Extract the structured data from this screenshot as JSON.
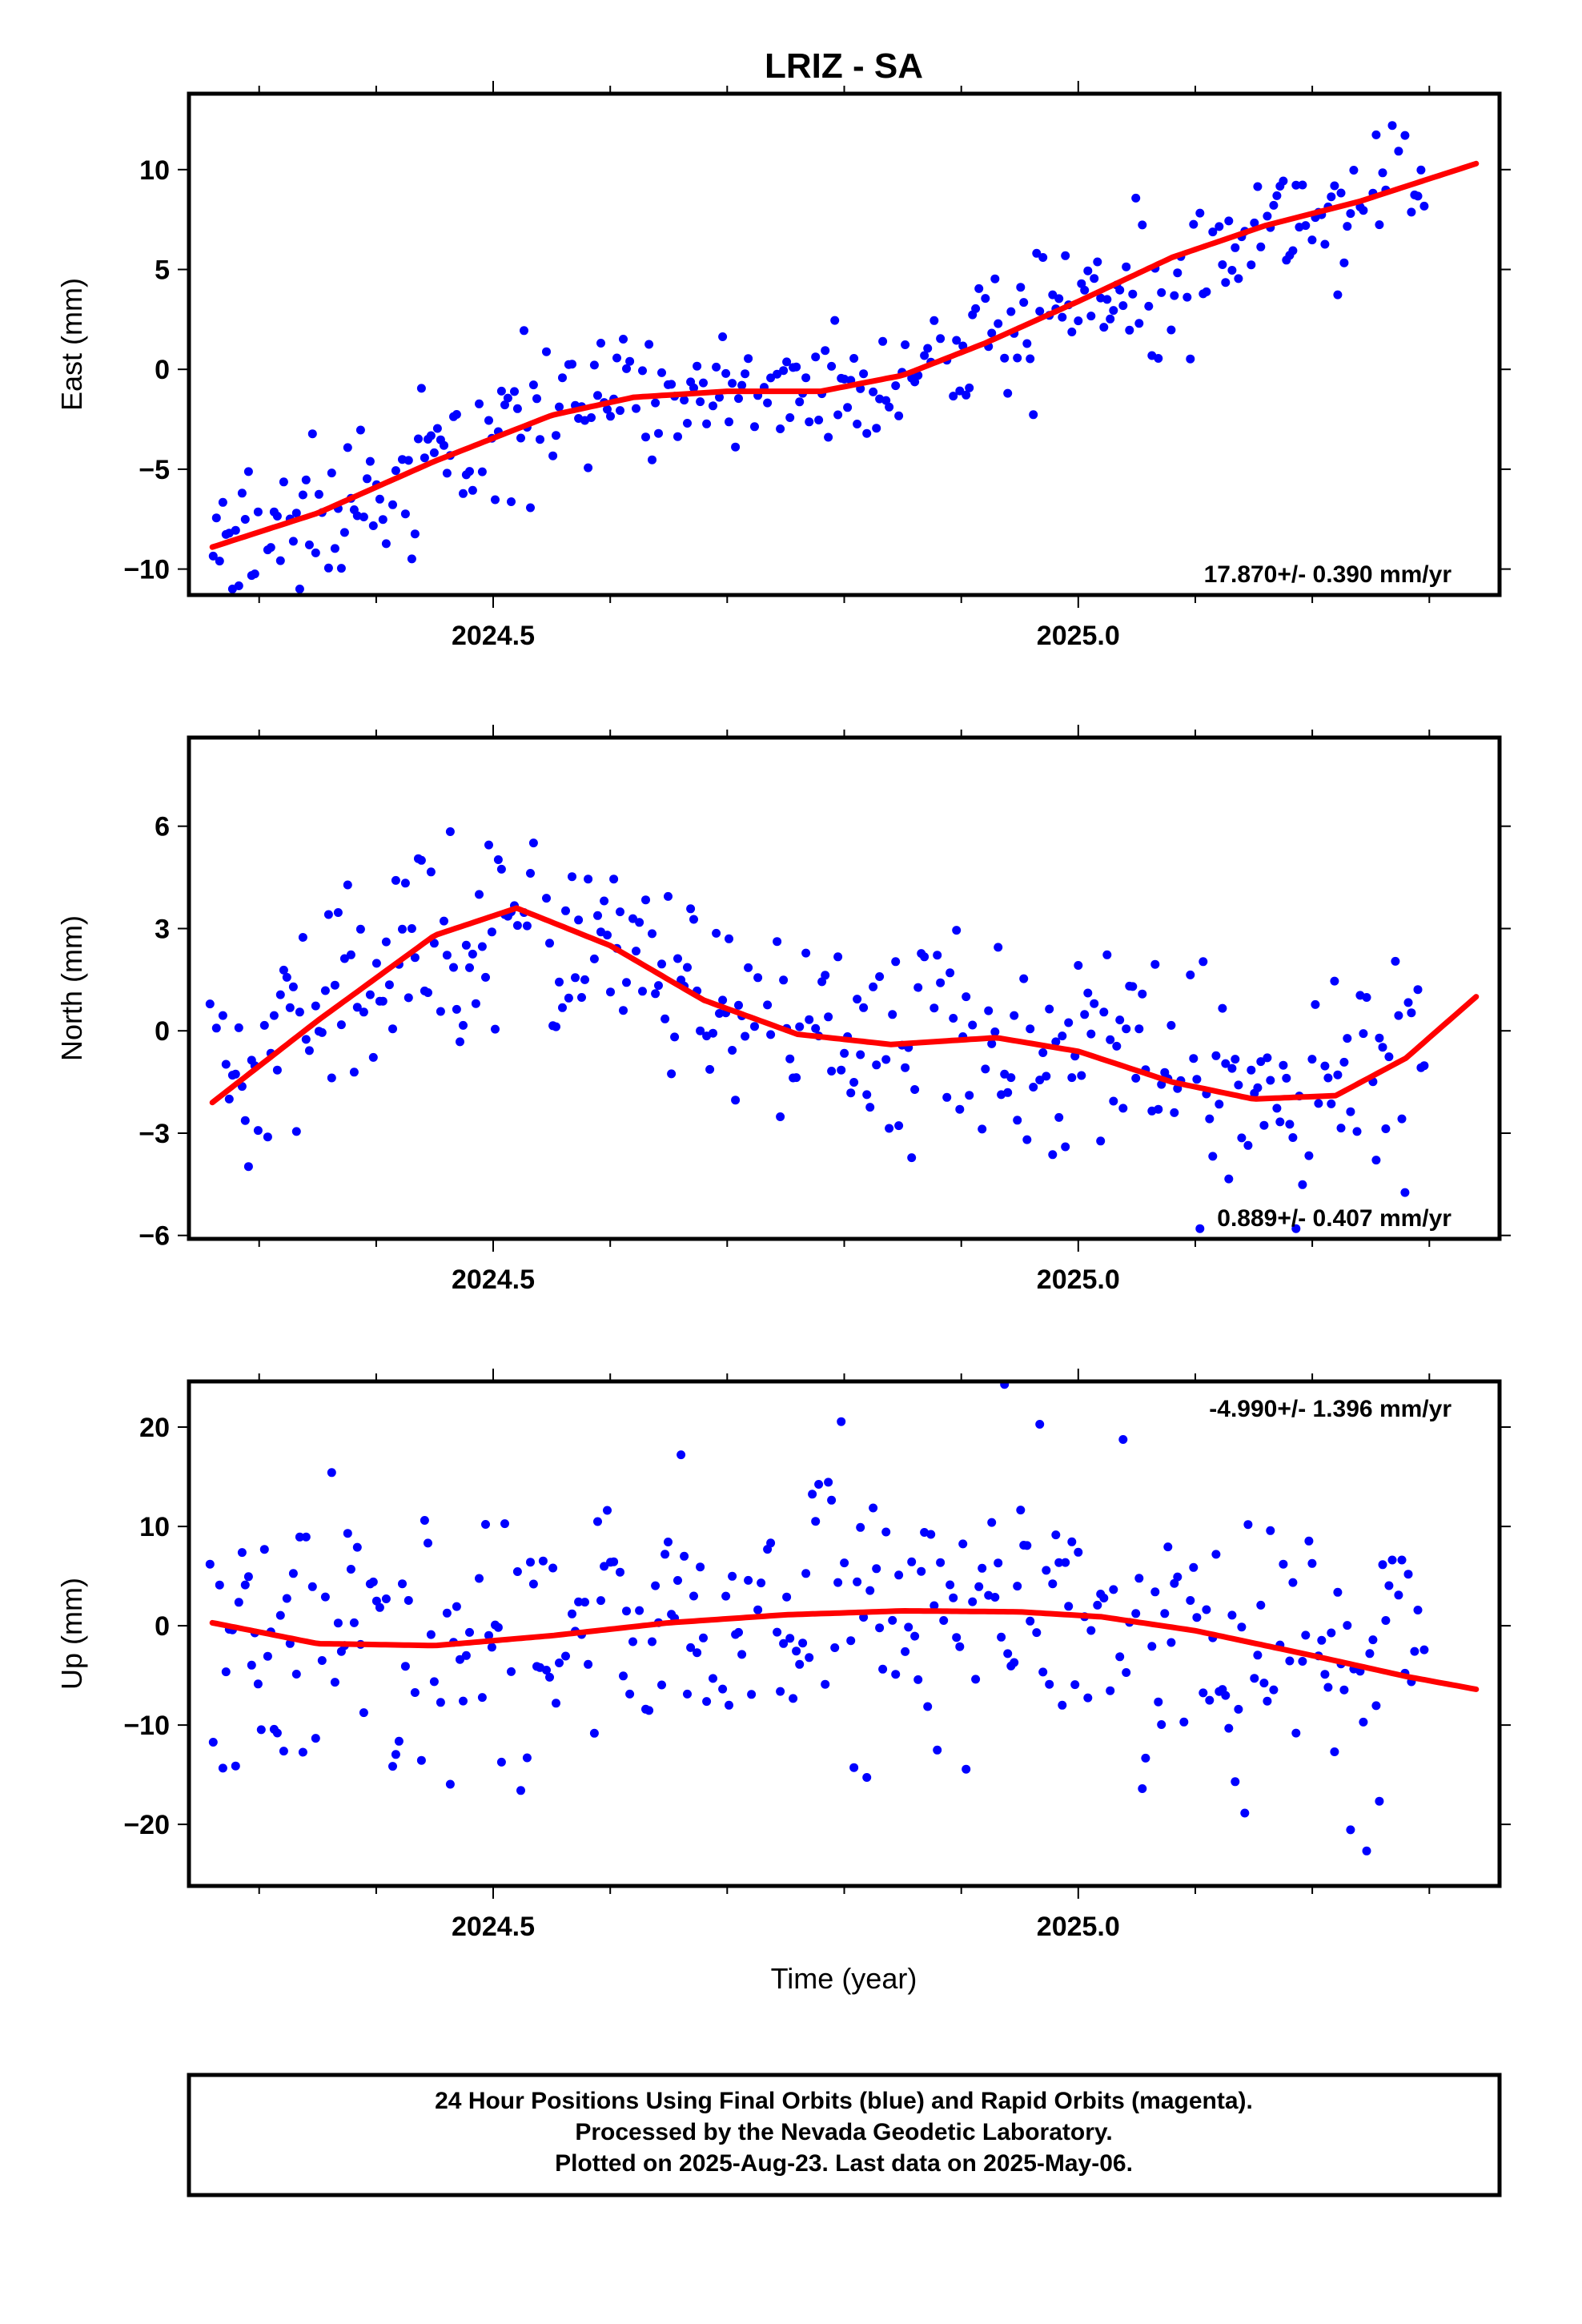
{
  "title": "LRIZ - SA",
  "colors": {
    "final": "#0000ff",
    "rapid": "#ff00ff",
    "fit": "#ff0000",
    "frame": "#000000"
  },
  "footer": {
    "line1": "24 Hour Positions Using Final Orbits (blue) and Rapid Orbits (magenta).",
    "line2": "Processed by the Nevada Geodetic Laboratory.",
    "line3": "Plotted on 2025-Aug-23. Last data on 2025-May-06."
  },
  "chart_data": [
    {
      "type": "scatter",
      "component": "east",
      "ylabel": "East (mm)",
      "xlabel": "",
      "xlim": [
        2024.24,
        2025.36
      ],
      "ylim": [
        -11.3,
        13.8
      ],
      "x_ticks": [
        2024.5,
        2025.0
      ],
      "x_tick_labels": [
        "2024.5",
        "2025.0"
      ],
      "y_ticks": [
        -10,
        -5,
        0,
        5,
        10
      ],
      "y_tick_labels": [
        "−10",
        "−5",
        "0",
        "5",
        "10"
      ],
      "rate_label": "17.870+/- 0.390 mm/yr",
      "rate_position": "bottom-right",
      "noise": 1.6,
      "trend": {
        "x": [
          2024.26,
          2024.35,
          2024.45,
          2024.55,
          2024.62,
          2024.7,
          2024.78,
          2024.85,
          2024.92,
          2025.0,
          2025.08,
          2025.16,
          2025.24,
          2025.34
        ],
        "y": [
          -8.9,
          -7.2,
          -4.6,
          -2.3,
          -1.4,
          -1.1,
          -1.1,
          -0.3,
          1.3,
          3.4,
          5.6,
          7.2,
          8.4,
          10.3
        ]
      },
      "series": [
        {
          "name": "Final Orbits",
          "color": "#0000ff",
          "x": [],
          "y": []
        },
        {
          "name": "Rapid Orbits",
          "color": "#ff00ff",
          "x": [],
          "y": []
        }
      ]
    },
    {
      "type": "scatter",
      "component": "north",
      "ylabel": "North (mm)",
      "xlabel": "",
      "xlim": [
        2024.24,
        2025.36
      ],
      "ylim": [
        -6.1,
        8.6
      ],
      "x_ticks": [
        2024.5,
        2025.0
      ],
      "x_tick_labels": [
        "2024.5",
        "2025.0"
      ],
      "y_ticks": [
        -6,
        -3,
        0,
        3,
        6
      ],
      "y_tick_labels": [
        "−6",
        "−3",
        "0",
        "3",
        "6"
      ],
      "rate_label": "0.889+/- 0.407 mm/yr",
      "rate_position": "bottom-right",
      "noise": 1.5,
      "trend": {
        "x": [
          2024.26,
          2024.35,
          2024.45,
          2024.52,
          2024.6,
          2024.68,
          2024.76,
          2024.84,
          2024.93,
          2025.0,
          2025.08,
          2025.15,
          2025.22,
          2025.28,
          2025.34
        ],
        "y": [
          -2.1,
          0.3,
          2.8,
          3.6,
          2.5,
          0.9,
          -0.1,
          -0.4,
          -0.2,
          -0.6,
          -1.5,
          -2.0,
          -1.9,
          -0.8,
          1.0
        ]
      },
      "series": [
        {
          "name": "Final Orbits",
          "color": "#0000ff",
          "x": [],
          "y": []
        },
        {
          "name": "Rapid Orbits",
          "color": "#ff00ff",
          "x": [],
          "y": []
        }
      ]
    },
    {
      "type": "scatter",
      "component": "up",
      "ylabel": "Up (mm)",
      "xlabel": "Time (year)",
      "xlim": [
        2024.24,
        2025.36
      ],
      "ylim": [
        -26.2,
        24.6
      ],
      "x_ticks": [
        2024.5,
        2025.0
      ],
      "x_tick_labels": [
        "2024.5",
        "2025.0"
      ],
      "y_ticks": [
        -20,
        -10,
        0,
        10,
        20
      ],
      "y_tick_labels": [
        "−20",
        "−10",
        "0",
        "10",
        "20"
      ],
      "rate_label": "-4.990+/- 1.396 mm/yr",
      "rate_position": "top-right",
      "noise": 7.0,
      "trend": {
        "x": [
          2024.26,
          2024.35,
          2024.45,
          2024.55,
          2024.65,
          2024.75,
          2024.85,
          2024.95,
          2025.02,
          2025.1,
          2025.2,
          2025.28,
          2025.34
        ],
        "y": [
          0.3,
          -1.8,
          -2.0,
          -1.0,
          0.3,
          1.1,
          1.5,
          1.4,
          0.9,
          -0.5,
          -3.0,
          -5.1,
          -6.4
        ]
      },
      "series": [
        {
          "name": "Final Orbits",
          "color": "#0000ff",
          "x": [],
          "y": []
        },
        {
          "name": "Rapid Orbits",
          "color": "#ff00ff",
          "x": [],
          "y": []
        }
      ]
    }
  ]
}
